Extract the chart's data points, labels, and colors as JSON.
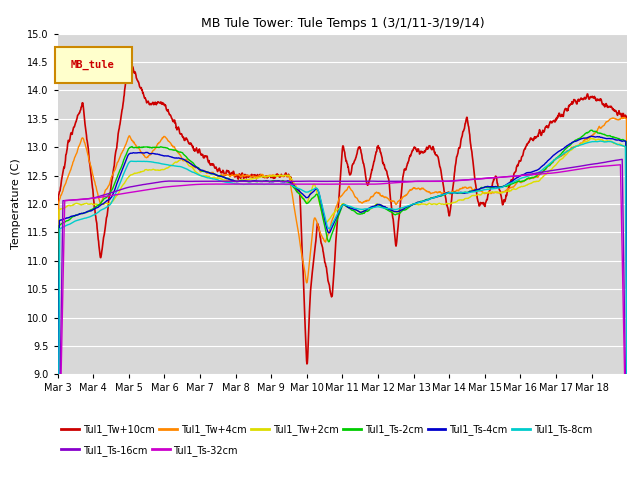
{
  "title": "MB Tule Tower: Tule Temps 1 (3/1/11-3/19/14)",
  "ylabel": "Temperature (C)",
  "ylim": [
    9.0,
    15.0
  ],
  "yticks": [
    9.0,
    9.5,
    10.0,
    10.5,
    11.0,
    11.5,
    12.0,
    12.5,
    13.0,
    13.5,
    14.0,
    14.5,
    15.0
  ],
  "bg_color": "#d8d8d8",
  "grid_color": "#ffffff",
  "series": [
    {
      "label": "Tul1_Tw+10cm",
      "color": "#cc0000",
      "lw": 1.2
    },
    {
      "label": "Tul1_Tw+4cm",
      "color": "#ff8800",
      "lw": 1.0
    },
    {
      "label": "Tul1_Tw+2cm",
      "color": "#dddd00",
      "lw": 1.0
    },
    {
      "label": "Tul1_Ts-2cm",
      "color": "#00cc00",
      "lw": 1.0
    },
    {
      "label": "Tul1_Ts-4cm",
      "color": "#0000cc",
      "lw": 1.0
    },
    {
      "label": "Tul1_Ts-8cm",
      "color": "#00cccc",
      "lw": 1.0
    },
    {
      "label": "Tul1_Ts-16cm",
      "color": "#8800cc",
      "lw": 1.0
    },
    {
      "label": "Tul1_Ts-32cm",
      "color": "#cc00cc",
      "lw": 1.0
    }
  ],
  "legend_box": {
    "label": "MB_tule",
    "fc": "#ffffcc",
    "ec": "#cc8800",
    "tc": "#cc0000"
  },
  "xtick_labels": [
    "Mar 3",
    "Mar 4",
    "Mar 5",
    "Mar 6",
    "Mar 7",
    "Mar 8",
    "Mar 9",
    "Mar 10",
    "Mar 11",
    "Mar 12",
    "Mar 13",
    "Mar 14",
    "Mar 15",
    "Mar 16",
    "Mar 17",
    "Mar 18"
  ],
  "n_days": 16,
  "n_points": 1600
}
